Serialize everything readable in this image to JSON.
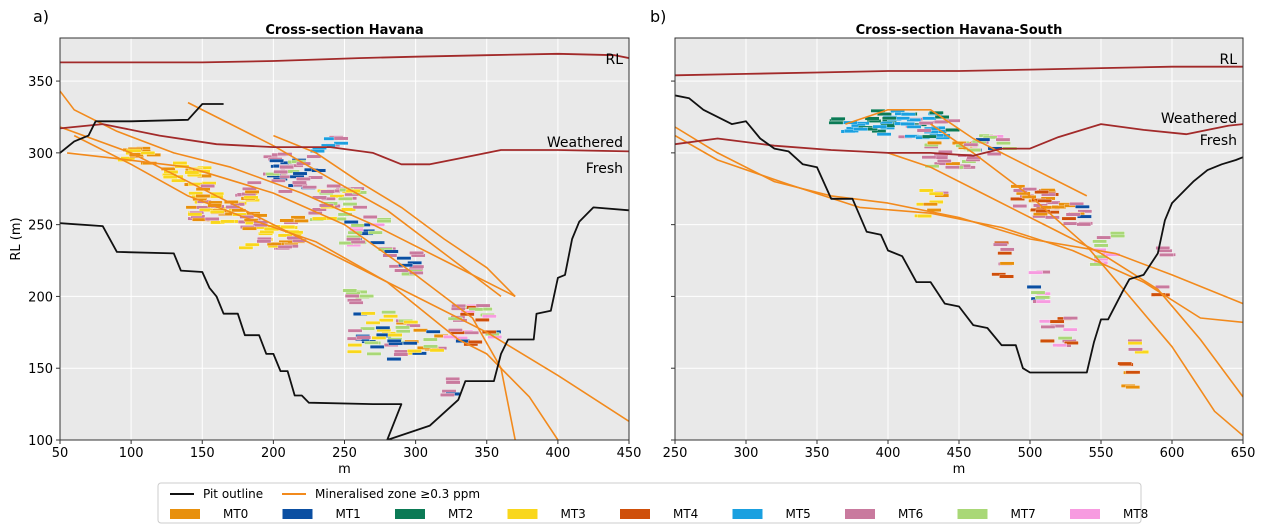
{
  "chart_data": [
    {
      "type": "line",
      "panel_label": "a)",
      "title": "Cross-section Havana",
      "xlabel": "m",
      "ylabel": "RL (m)",
      "xlim": [
        50,
        450
      ],
      "ylim": [
        100,
        380
      ],
      "xticks": [
        50,
        100,
        150,
        200,
        250,
        300,
        350,
        400,
        450
      ],
      "yticks": [
        100,
        150,
        200,
        250,
        300,
        350
      ],
      "grid": true,
      "surface_labels": {
        "rl": "RL",
        "weathered": "Weathered",
        "fresh": "Fresh"
      },
      "rl_surface": [
        [
          50,
          363
        ],
        [
          100,
          363
        ],
        [
          150,
          363
        ],
        [
          200,
          364
        ],
        [
          260,
          366
        ],
        [
          300,
          367
        ],
        [
          350,
          368
        ],
        [
          400,
          369
        ],
        [
          440,
          368
        ],
        [
          450,
          366
        ]
      ],
      "weathered_surface": [
        [
          50,
          317
        ],
        [
          80,
          320
        ],
        [
          120,
          312
        ],
        [
          160,
          306
        ],
        [
          200,
          304
        ],
        [
          240,
          304
        ],
        [
          270,
          300
        ],
        [
          290,
          292
        ],
        [
          310,
          292
        ],
        [
          330,
          296
        ],
        [
          360,
          302
        ],
        [
          400,
          302
        ],
        [
          450,
          301
        ]
      ],
      "pit_outline": [
        [
          50,
          251
        ],
        [
          80,
          249
        ],
        [
          90,
          231
        ],
        [
          130,
          230
        ],
        [
          135,
          218
        ],
        [
          150,
          217
        ],
        [
          155,
          206
        ],
        [
          160,
          200
        ],
        [
          165,
          188
        ],
        [
          175,
          188
        ],
        [
          180,
          173
        ],
        [
          190,
          173
        ],
        [
          195,
          160
        ],
        [
          200,
          160
        ],
        [
          205,
          148
        ],
        [
          210,
          148
        ],
        [
          215,
          131
        ],
        [
          220,
          131
        ],
        [
          225,
          126
        ],
        [
          270,
          125
        ],
        [
          290,
          125
        ],
        [
          280,
          100
        ],
        [
          310,
          110
        ],
        [
          330,
          128
        ],
        [
          335,
          141
        ],
        [
          355,
          141
        ],
        [
          360,
          160
        ],
        [
          365,
          170
        ],
        [
          383,
          170
        ],
        [
          385,
          188
        ],
        [
          395,
          190
        ],
        [
          400,
          213
        ],
        [
          405,
          215
        ],
        [
          410,
          240
        ],
        [
          415,
          252
        ],
        [
          425,
          262
        ],
        [
          450,
          260
        ]
      ],
      "pit_outline_top": [
        [
          50,
          300
        ],
        [
          60,
          308
        ],
        [
          70,
          312
        ],
        [
          75,
          322
        ],
        [
          100,
          322
        ],
        [
          140,
          323
        ],
        [
          150,
          334
        ],
        [
          165,
          334
        ]
      ],
      "mineralised_zones": [
        [
          [
            50,
            318
          ],
          [
            100,
            300
          ],
          [
            150,
            275
          ],
          [
            200,
            250
          ],
          [
            250,
            225
          ],
          [
            300,
            200
          ],
          [
            350,
            175
          ],
          [
            400,
            145
          ],
          [
            450,
            113
          ]
        ],
        [
          [
            60,
            312
          ],
          [
            100,
            292
          ],
          [
            140,
            270
          ],
          [
            180,
            255
          ],
          [
            230,
            238
          ],
          [
            280,
            210
          ],
          [
            330,
            170
          ],
          [
            350,
            160
          ],
          [
            380,
            130
          ],
          [
            400,
            100
          ]
        ],
        [
          [
            50,
            343
          ],
          [
            60,
            330
          ],
          [
            90,
            315
          ],
          [
            130,
            300
          ],
          [
            170,
            290
          ],
          [
            220,
            272
          ],
          [
            270,
            250
          ],
          [
            320,
            225
          ],
          [
            370,
            200
          ]
        ],
        [
          [
            55,
            300
          ],
          [
            90,
            296
          ],
          [
            140,
            290
          ],
          [
            200,
            272
          ],
          [
            250,
            250
          ],
          [
            300,
            215
          ],
          [
            340,
            185
          ],
          [
            360,
            150
          ],
          [
            370,
            100
          ]
        ],
        [
          [
            140,
            335
          ],
          [
            160,
            325
          ],
          [
            200,
            305
          ],
          [
            240,
            282
          ],
          [
            280,
            260
          ],
          [
            320,
            230
          ],
          [
            360,
            200
          ]
        ],
        [
          [
            200,
            312
          ],
          [
            230,
            300
          ],
          [
            260,
            280
          ],
          [
            290,
            262
          ],
          [
            320,
            240
          ],
          [
            350,
            220
          ],
          [
            370,
            200
          ]
        ]
      ],
      "blocks_note": "Block model cells coloured by mineralisation type MT0–MT8"
    },
    {
      "type": "line",
      "panel_label": "b)",
      "title": "Cross-section Havana-South",
      "xlabel": "m",
      "ylabel": "",
      "xlim": [
        250,
        650
      ],
      "ylim": [
        100,
        380
      ],
      "xticks": [
        250,
        300,
        350,
        400,
        450,
        500,
        550,
        600,
        650
      ],
      "yticks": [
        100,
        150,
        200,
        250,
        300,
        350
      ],
      "grid": true,
      "surface_labels": {
        "rl": "RL",
        "weathered": "Weathered",
        "fresh": "Fresh"
      },
      "rl_surface": [
        [
          250,
          354
        ],
        [
          300,
          355
        ],
        [
          350,
          356
        ],
        [
          400,
          357
        ],
        [
          450,
          357
        ],
        [
          500,
          358
        ],
        [
          550,
          359
        ],
        [
          600,
          360
        ],
        [
          650,
          360
        ]
      ],
      "weathered_surface": [
        [
          250,
          306
        ],
        [
          280,
          310
        ],
        [
          320,
          305
        ],
        [
          360,
          302
        ],
        [
          400,
          300
        ],
        [
          430,
          300
        ],
        [
          460,
          298
        ],
        [
          480,
          303
        ],
        [
          500,
          303
        ],
        [
          520,
          311
        ],
        [
          550,
          320
        ],
        [
          580,
          316
        ],
        [
          610,
          313
        ],
        [
          640,
          319
        ],
        [
          650,
          320
        ]
      ],
      "pit_outline": [
        [
          250,
          340
        ],
        [
          260,
          338
        ],
        [
          270,
          330
        ],
        [
          290,
          320
        ],
        [
          300,
          322
        ],
        [
          310,
          310
        ],
        [
          320,
          303
        ],
        [
          330,
          301
        ],
        [
          340,
          292
        ],
        [
          350,
          290
        ],
        [
          360,
          268
        ],
        [
          375,
          268
        ],
        [
          385,
          245
        ],
        [
          395,
          243
        ],
        [
          400,
          232
        ],
        [
          410,
          228
        ],
        [
          420,
          210
        ],
        [
          430,
          210
        ],
        [
          440,
          195
        ],
        [
          450,
          193
        ],
        [
          460,
          180
        ],
        [
          470,
          178
        ],
        [
          480,
          166
        ],
        [
          490,
          166
        ],
        [
          495,
          150
        ],
        [
          500,
          147
        ],
        [
          540,
          147
        ],
        [
          545,
          168
        ],
        [
          550,
          184
        ],
        [
          555,
          184
        ],
        [
          565,
          203
        ],
        [
          570,
          212
        ],
        [
          580,
          215
        ],
        [
          590,
          230
        ],
        [
          595,
          253
        ],
        [
          600,
          265
        ],
        [
          610,
          275
        ],
        [
          615,
          280
        ],
        [
          625,
          288
        ],
        [
          635,
          292
        ],
        [
          645,
          295
        ],
        [
          650,
          297
        ]
      ],
      "mineralised_zones": [
        [
          [
            250,
            318
          ],
          [
            280,
            300
          ],
          [
            320,
            280
          ],
          [
            360,
            270
          ],
          [
            400,
            265
          ],
          [
            450,
            255
          ],
          [
            500,
            240
          ],
          [
            560,
            230
          ],
          [
            600,
            215
          ],
          [
            650,
            195
          ]
        ],
        [
          [
            250,
            312
          ],
          [
            280,
            295
          ],
          [
            330,
            278
          ],
          [
            380,
            262
          ],
          [
            430,
            258
          ],
          [
            480,
            248
          ],
          [
            530,
            232
          ],
          [
            580,
            210
          ],
          [
            620,
            185
          ],
          [
            650,
            182
          ]
        ],
        [
          [
            400,
            300
          ],
          [
            430,
            290
          ],
          [
            470,
            270
          ],
          [
            510,
            250
          ],
          [
            550,
            230
          ],
          [
            590,
            205
          ],
          [
            620,
            170
          ],
          [
            650,
            130
          ]
        ],
        [
          [
            430,
            320
          ],
          [
            460,
            300
          ],
          [
            500,
            270
          ],
          [
            540,
            235
          ],
          [
            570,
            200
          ],
          [
            600,
            165
          ],
          [
            630,
            120
          ],
          [
            650,
            103
          ]
        ],
        [
          [
            370,
            320
          ],
          [
            400,
            330
          ],
          [
            430,
            330
          ],
          [
            460,
            310
          ],
          [
            500,
            290
          ],
          [
            540,
            270
          ]
        ]
      ],
      "blocks_note": "Block model cells coloured by mineralisation type MT0–MT8"
    }
  ],
  "legend": {
    "lines": [
      {
        "label": "Pit outline",
        "color": "#111111"
      },
      {
        "label": "Mineralised zone ≥0.3 ppm",
        "color": "#f28a1c"
      }
    ],
    "types": [
      {
        "label": "MT0",
        "color": "#e8900c"
      },
      {
        "label": "MT1",
        "color": "#0b4fa2"
      },
      {
        "label": "MT2",
        "color": "#0b7a55"
      },
      {
        "label": "MT3",
        "color": "#f9d71c"
      },
      {
        "label": "MT4",
        "color": "#cf4f0a"
      },
      {
        "label": "MT5",
        "color": "#1aa0e0"
      },
      {
        "label": "MT6",
        "color": "#c97a9e"
      },
      {
        "label": "MT7",
        "color": "#a9d877"
      },
      {
        "label": "MT8",
        "color": "#f79be0"
      }
    ]
  },
  "colors": {
    "panel_bg": "#e9e9e9",
    "surface": "#a22a2a",
    "pit": "#111111",
    "zone": "#f28a1c"
  }
}
